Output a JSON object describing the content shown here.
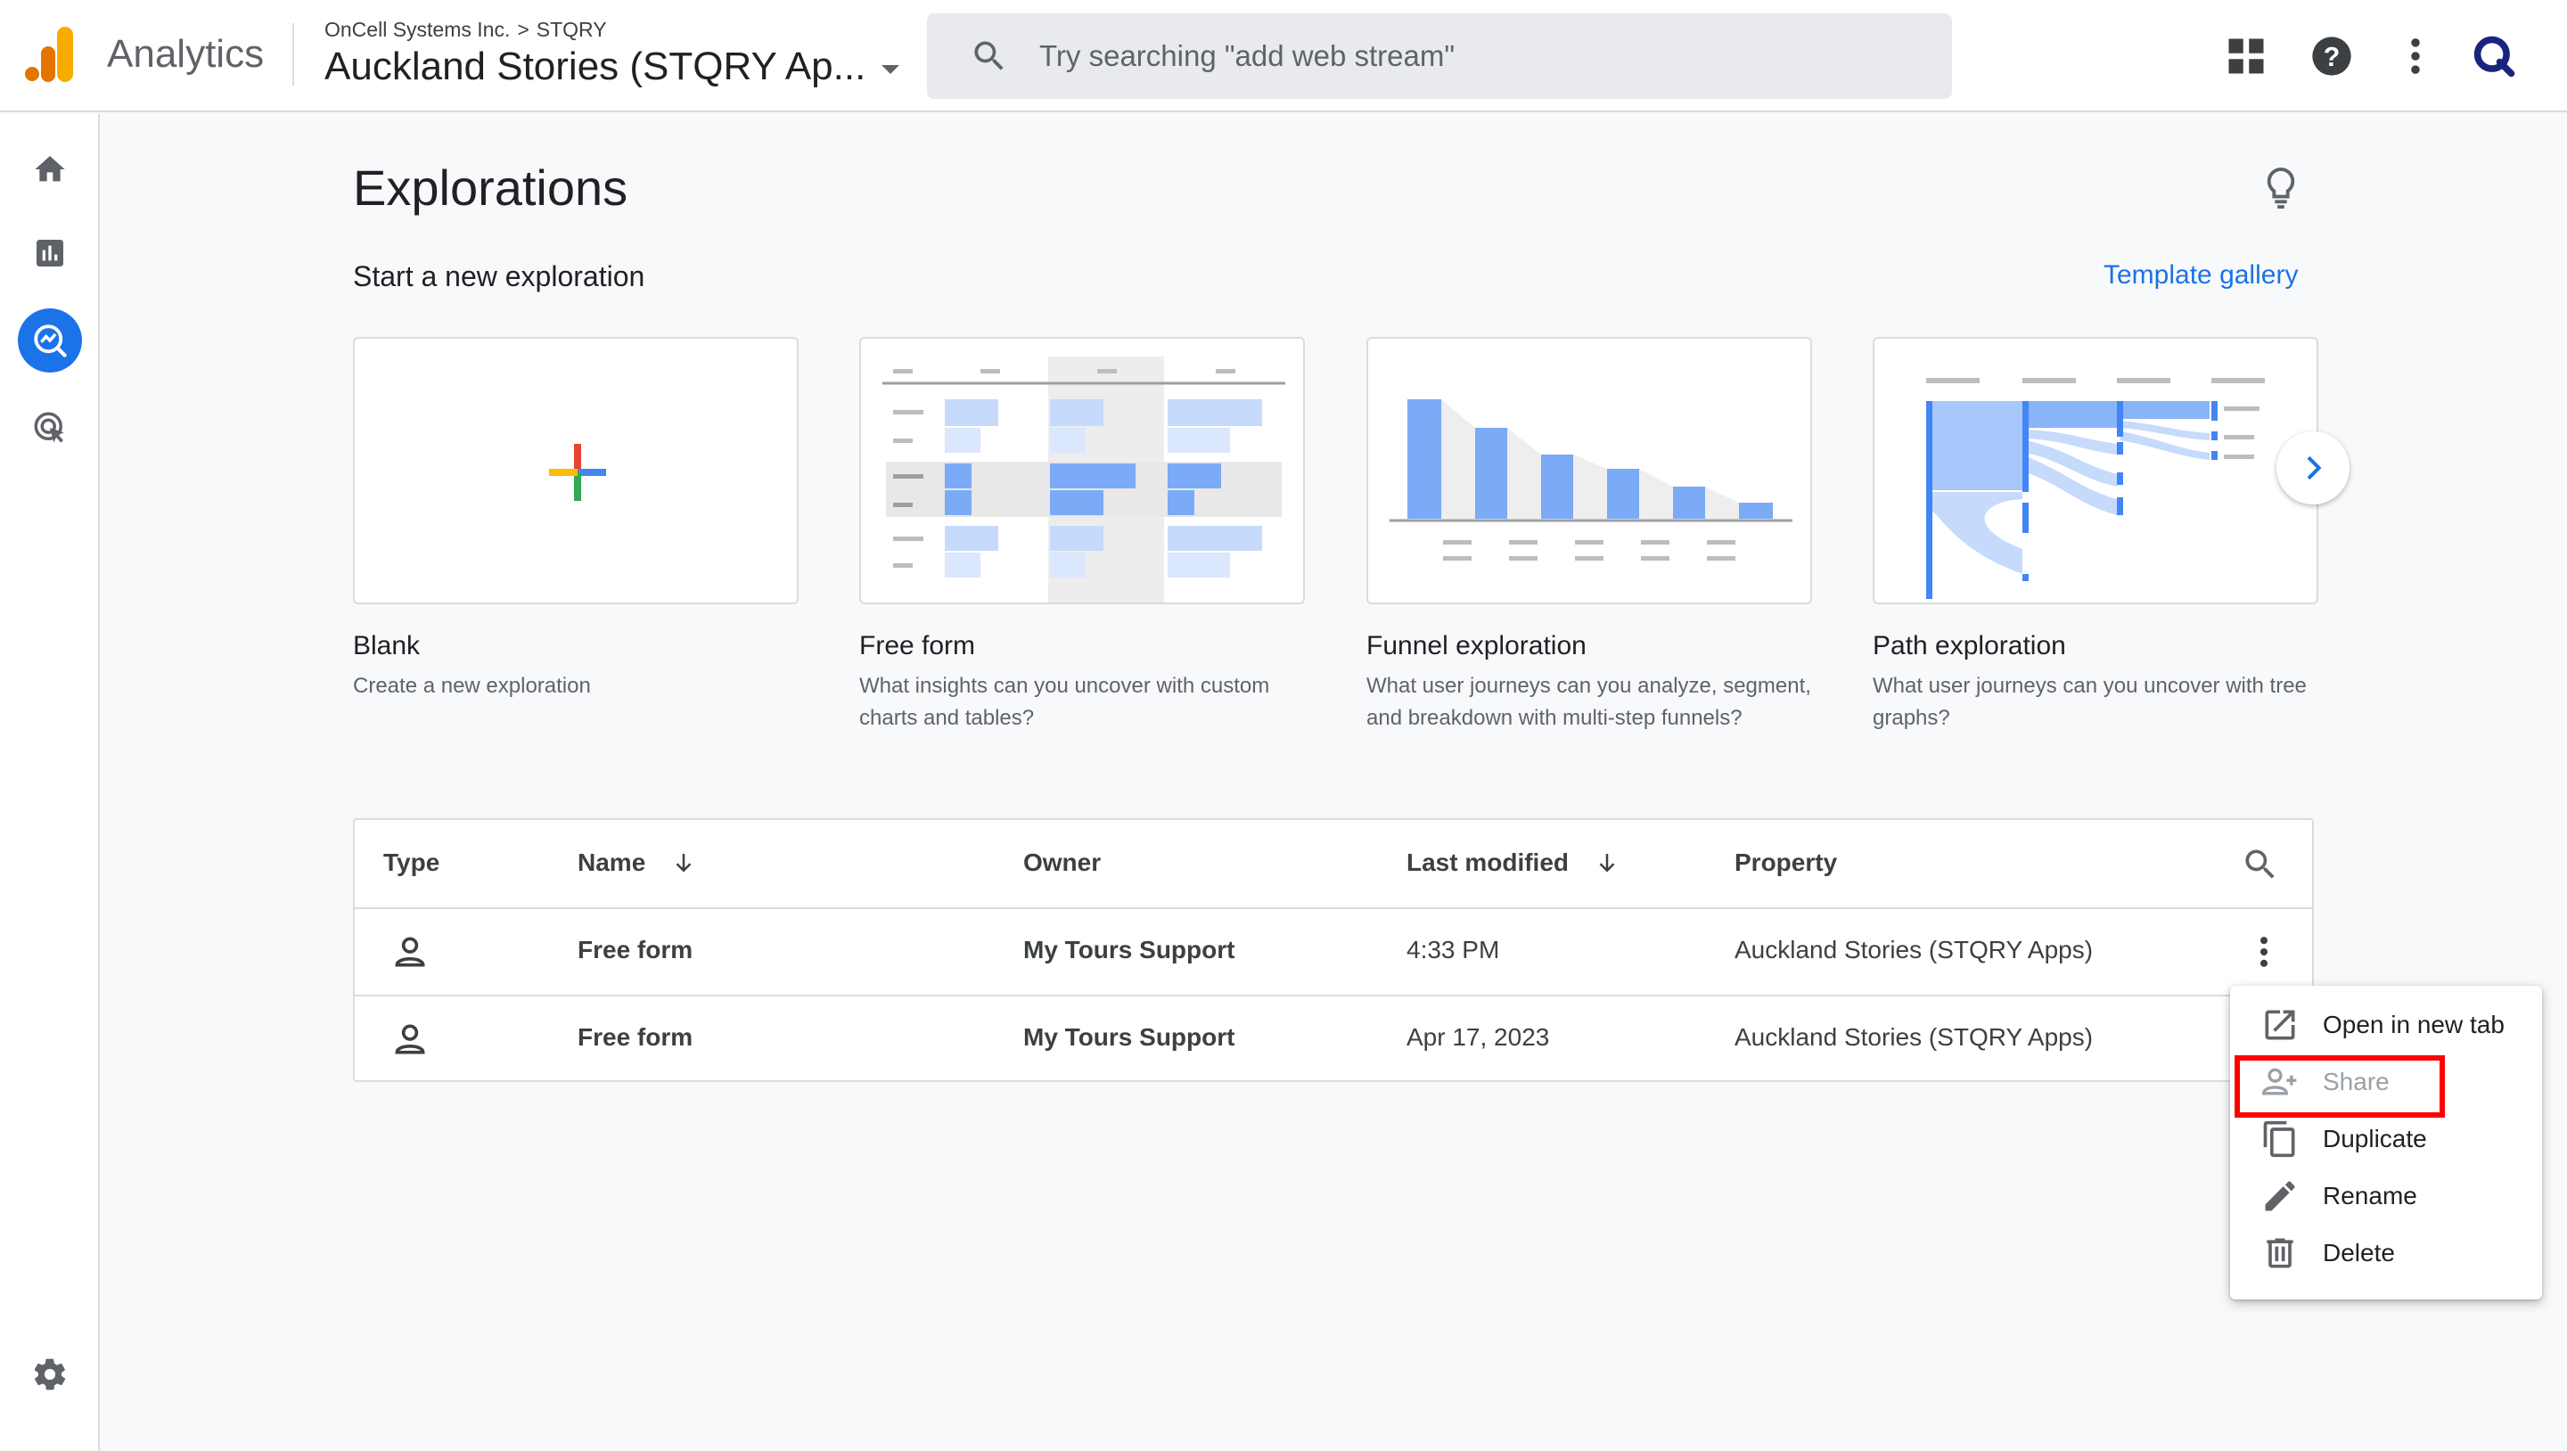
{
  "header": {
    "brand": "Analytics",
    "breadcrumb_account": "OnCell Systems Inc.",
    "breadcrumb_separator": ">",
    "breadcrumb_property": "STQRY",
    "property_title": "Auckland Stories (STQRY Ap...",
    "search_placeholder": "Try searching \"add web stream\""
  },
  "icons": {
    "header": [
      "apps-grid-icon",
      "help-icon",
      "more-vert-icon",
      "account-avatar-icon"
    ],
    "leftnav": [
      "home-icon",
      "reports-icon",
      "explore-icon",
      "advertising-icon",
      "settings-icon"
    ]
  },
  "main": {
    "title": "Explorations",
    "section_title": "Start a new exploration",
    "template_gallery": "Template gallery",
    "templates": [
      {
        "title": "Blank",
        "desc": "Create a new exploration"
      },
      {
        "title": "Free form",
        "desc": "What insights can you uncover with custom charts and tables?"
      },
      {
        "title": "Funnel exploration",
        "desc": "What user journeys can you analyze, segment, and breakdown with multi-step funnels?"
      },
      {
        "title": "Path exploration",
        "desc": "What user journeys can you uncover with tree graphs?"
      }
    ]
  },
  "table": {
    "headers": {
      "type": "Type",
      "name": "Name",
      "owner": "Owner",
      "last_modified": "Last modified",
      "property": "Property"
    },
    "rows": [
      {
        "name": "Free form",
        "owner": "My Tours Support",
        "last_modified": "4:33 PM",
        "property": "Auckland Stories (STQRY Apps)"
      },
      {
        "name": "Free form",
        "owner": "My Tours Support",
        "last_modified": "Apr 17, 2023",
        "property": "Auckland Stories (STQRY Apps)"
      }
    ]
  },
  "context_menu": {
    "items": [
      {
        "label": "Open in new tab",
        "enabled": true
      },
      {
        "label": "Share",
        "enabled": false
      },
      {
        "label": "Duplicate",
        "enabled": true
      },
      {
        "label": "Rename",
        "enabled": true
      },
      {
        "label": "Delete",
        "enabled": true
      }
    ]
  },
  "colors": {
    "accent": "#1a73e8",
    "highlight": "#ff0000",
    "chart_blue": "#7baaf7",
    "chart_light": "#d2e3fc"
  }
}
